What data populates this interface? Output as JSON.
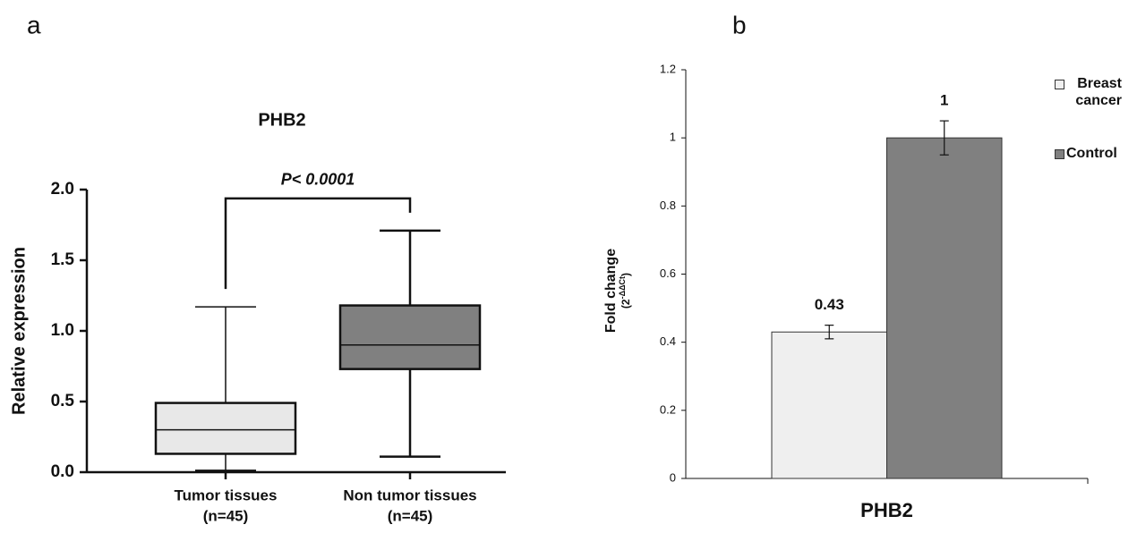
{
  "chart_data": [
    {
      "type": "box",
      "panel_label": "a",
      "title": "PHB2",
      "ylabel": "Relative expression",
      "categories": [
        "Tumor tissues",
        "Non tumor tissues"
      ],
      "category_notes": [
        "(n=45)",
        "(n=45)"
      ],
      "boxes": [
        {
          "min": 0.01,
          "q1": 0.13,
          "median": 0.3,
          "q3": 0.49,
          "max": 1.17,
          "color": "#e8e8e8"
        },
        {
          "min": 0.11,
          "q1": 0.73,
          "median": 0.9,
          "q3": 1.18,
          "max": 1.71,
          "color": "#808080"
        }
      ],
      "annotation": "P< 0.0001",
      "ylim": [
        0,
        2
      ],
      "yticks": [
        {
          "value": 0,
          "label": "0.0"
        },
        0.5,
        {
          "value": 1,
          "label": "1.0"
        },
        1.5,
        {
          "value": 2,
          "label": "2.0"
        }
      ]
    },
    {
      "type": "bar",
      "panel_label": "b",
      "categories": [
        "PHB2"
      ],
      "ylabel": "Fold change",
      "ylabel_base": "(2",
      "ylabel_exponent": "-ΔΔCt",
      "ylabel_close": ")",
      "series": [
        {
          "name": "Breast cancer",
          "color": "#efefef",
          "values": [
            0.43
          ],
          "errors": [
            0.02
          ]
        },
        {
          "name": "Control",
          "color": "#808080",
          "values": [
            1
          ],
          "errors": [
            0.05
          ]
        }
      ],
      "ylim": [
        0,
        1.2
      ],
      "yticks": [
        0,
        0.2,
        0.4,
        0.6,
        0.8,
        1,
        1.2
      ],
      "legend": "right"
    }
  ]
}
